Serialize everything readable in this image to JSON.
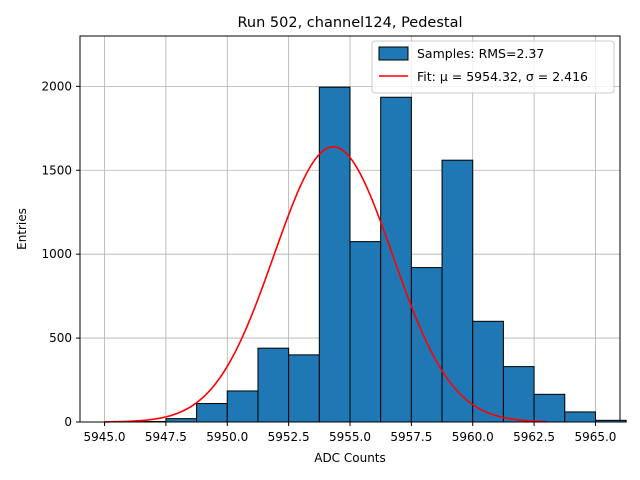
{
  "chart_data": {
    "type": "bar",
    "title": "Run 502, channel124, Pedestal",
    "xlabel": "ADC Counts",
    "ylabel": "Entries",
    "xlim": [
      5944.0,
      5966.0
    ],
    "ylim": [
      0,
      2300
    ],
    "grid": true,
    "legend_placement": "top-right",
    "bar_color": "#1f77b4",
    "bar_edge_color": "#000000",
    "fit_color": "#ff0000",
    "x_ticks": [
      5945.0,
      5947.5,
      5950.0,
      5952.5,
      5955.0,
      5957.5,
      5960.0,
      5962.5,
      5965.0
    ],
    "x_tick_labels": [
      "5945.0",
      "5947.5",
      "5950.0",
      "5952.5",
      "5955.0",
      "5957.5",
      "5960.0",
      "5962.5",
      "5965.0"
    ],
    "y_ticks": [
      0,
      500,
      1000,
      1500,
      2000
    ],
    "y_tick_labels": [
      "0",
      "500",
      "1000",
      "1500",
      "2000"
    ],
    "bins": [
      {
        "x0": 5945.0,
        "x1": 5946.25,
        "value": 0
      },
      {
        "x0": 5946.25,
        "x1": 5947.5,
        "value": 3
      },
      {
        "x0": 5947.5,
        "x1": 5948.75,
        "value": 20
      },
      {
        "x0": 5948.75,
        "x1": 5950.0,
        "value": 110
      },
      {
        "x0": 5950.0,
        "x1": 5951.25,
        "value": 185
      },
      {
        "x0": 5951.25,
        "x1": 5952.5,
        "value": 440
      },
      {
        "x0": 5952.5,
        "x1": 5953.75,
        "value": 400
      },
      {
        "x0": 5953.75,
        "x1": 5955.0,
        "value": 1995
      },
      {
        "x0": 5955.0,
        "x1": 5956.25,
        "value": 1075
      },
      {
        "x0": 5956.25,
        "x1": 5957.5,
        "value": 1935
      },
      {
        "x0": 5957.5,
        "x1": 5958.75,
        "value": 920
      },
      {
        "x0": 5958.75,
        "x1": 5960.0,
        "value": 1560
      },
      {
        "x0": 5960.0,
        "x1": 5961.25,
        "value": 600
      },
      {
        "x0": 5961.25,
        "x1": 5962.5,
        "value": 330
      },
      {
        "x0": 5962.5,
        "x1": 5963.75,
        "value": 165
      },
      {
        "x0": 5963.75,
        "x1": 5965.0,
        "value": 60
      },
      {
        "x0": 5965.0,
        "x1": 5966.25,
        "value": 10
      }
    ],
    "fit": {
      "mu": 5954.32,
      "sigma": 2.416,
      "amplitude": 1640,
      "x_range": [
        5945.0,
        5963.0
      ]
    },
    "legend": {
      "samples_label": "Samples: RMS=2.37",
      "fit_label": "Fit: μ = 5954.32, σ = 2.416"
    }
  }
}
